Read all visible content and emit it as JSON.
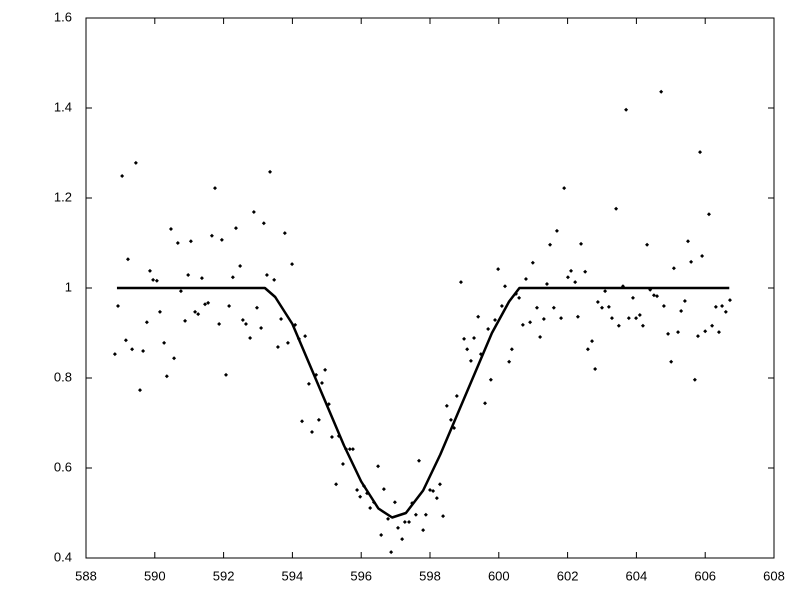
{
  "chart_data": {
    "type": "scatter",
    "xlim": [
      588,
      608
    ],
    "ylim": [
      0.4,
      1.6
    ],
    "xticks": [
      588,
      590,
      592,
      594,
      596,
      598,
      600,
      602,
      604,
      606,
      608
    ],
    "yticks": [
      0.4,
      0.6,
      0.8,
      1,
      1.2,
      1.4,
      1.6
    ],
    "series": [
      {
        "type": "scatter",
        "color": "#000000",
        "x": [
          588.84,
          588.93,
          589.05,
          589.16,
          589.22,
          589.34,
          589.45,
          589.57,
          589.66,
          589.77,
          589.86,
          589.95,
          590.06,
          590.15,
          590.27,
          590.35,
          590.47,
          590.56,
          590.67,
          590.76,
          590.88,
          590.97,
          591.05,
          591.17,
          591.26,
          591.37,
          591.46,
          591.55,
          591.66,
          591.75,
          591.87,
          591.95,
          592.07,
          592.16,
          592.27,
          592.36,
          592.48,
          592.56,
          592.65,
          592.77,
          592.88,
          592.97,
          593.09,
          593.17,
          593.26,
          593.35,
          593.47,
          593.58,
          593.67,
          593.78,
          593.87,
          593.99,
          594.08,
          594.19,
          594.28,
          594.37,
          594.48,
          594.57,
          594.69,
          594.77,
          594.86,
          594.95,
          595.06,
          595.15,
          595.27,
          595.35,
          595.47,
          595.56,
          595.67,
          595.76,
          595.88,
          595.97,
          596.08,
          596.17,
          596.26,
          596.37,
          596.49,
          596.58,
          596.66,
          596.78,
          596.87,
          596.98,
          597.07,
          597.19,
          597.27,
          597.39,
          597.48,
          597.59,
          597.68,
          597.8,
          597.88,
          598.0,
          598.09,
          598.2,
          598.29,
          598.38,
          598.49,
          598.61,
          598.7,
          598.78,
          598.9,
          598.99,
          599.08,
          599.19,
          599.28,
          599.4,
          599.48,
          599.6,
          599.69,
          599.77,
          599.89,
          599.98,
          600.09,
          600.18,
          600.3,
          600.38,
          600.5,
          600.59,
          600.7,
          600.79,
          600.91,
          600.99,
          601.11,
          601.2,
          601.31,
          601.4,
          601.49,
          601.6,
          601.69,
          601.81,
          601.9,
          602.01,
          602.1,
          602.22,
          602.3,
          602.39,
          602.51,
          602.59,
          602.71,
          602.8,
          602.88,
          603.0,
          603.09,
          603.2,
          603.29,
          603.41,
          603.49,
          603.61,
          603.7,
          603.78,
          603.9,
          603.99,
          604.1,
          604.19,
          604.31,
          604.4,
          604.51,
          604.6,
          604.72,
          604.8,
          604.92,
          605.01,
          605.09,
          605.21,
          605.3,
          605.41,
          605.5,
          605.59,
          605.7,
          605.79,
          605.85,
          605.91,
          606.0,
          606.11,
          606.2,
          606.31,
          606.4,
          606.49,
          606.6,
          606.72
        ],
        "values": [
          0.853,
          0.96,
          1.249,
          0.884,
          1.064,
          0.864,
          1.278,
          0.773,
          0.86,
          0.924,
          1.038,
          1.018,
          1.016,
          0.947,
          0.878,
          0.804,
          1.131,
          0.844,
          1.1,
          0.993,
          0.927,
          1.029,
          1.104,
          0.947,
          0.942,
          1.022,
          0.964,
          0.967,
          1.116,
          1.222,
          0.92,
          1.107,
          0.807,
          0.96,
          1.024,
          1.133,
          1.049,
          0.929,
          0.92,
          0.889,
          1.169,
          0.956,
          0.911,
          1.144,
          1.029,
          1.258,
          1.018,
          0.869,
          0.931,
          1.122,
          0.878,
          1.053,
          0.918,
          0.887,
          0.704,
          0.893,
          0.787,
          0.68,
          0.807,
          0.707,
          0.789,
          0.818,
          0.742,
          0.669,
          0.564,
          0.671,
          0.609,
          0.642,
          0.642,
          0.642,
          0.551,
          0.536,
          0.56,
          0.544,
          0.511,
          0.524,
          0.604,
          0.451,
          0.553,
          0.487,
          0.413,
          0.524,
          0.467,
          0.442,
          0.48,
          0.48,
          0.522,
          0.496,
          0.616,
          0.462,
          0.496,
          0.551,
          0.549,
          0.533,
          0.564,
          0.493,
          0.738,
          0.707,
          0.689,
          0.76,
          1.013,
          0.887,
          0.864,
          0.838,
          0.889,
          0.936,
          0.853,
          0.744,
          0.909,
          0.796,
          0.929,
          1.042,
          0.96,
          1.004,
          0.836,
          0.864,
          0.987,
          0.978,
          0.918,
          1.02,
          0.924,
          1.056,
          0.956,
          0.891,
          0.931,
          1.009,
          1.096,
          0.956,
          1.127,
          0.933,
          1.222,
          1.024,
          1.038,
          1.013,
          0.936,
          1.098,
          1.036,
          0.864,
          0.882,
          0.82,
          0.969,
          0.956,
          0.993,
          0.958,
          0.933,
          1.176,
          0.916,
          1.004,
          1.396,
          0.933,
          0.978,
          0.933,
          0.94,
          0.916,
          1.096,
          0.996,
          0.984,
          0.982,
          1.436,
          0.96,
          0.898,
          0.836,
          1.044,
          0.902,
          0.949,
          0.971,
          1.104,
          1.058,
          0.796,
          0.893,
          1.302,
          1.071,
          0.904,
          1.164,
          0.916,
          0.958,
          0.902,
          0.96,
          0.947,
          0.973
        ]
      },
      {
        "type": "line",
        "color": "#000000",
        "x": [
          588.9,
          593.2,
          593.5,
          594,
          594.5,
          595,
          595.5,
          596,
          596.5,
          596.9,
          597.3,
          597.8,
          598.3,
          598.8,
          599.3,
          599.8,
          600.3,
          600.6,
          606.7
        ],
        "values": [
          1,
          1,
          0.98,
          0.92,
          0.83,
          0.74,
          0.65,
          0.57,
          0.51,
          0.49,
          0.5,
          0.55,
          0.63,
          0.72,
          0.81,
          0.9,
          0.97,
          1,
          1
        ]
      }
    ]
  }
}
